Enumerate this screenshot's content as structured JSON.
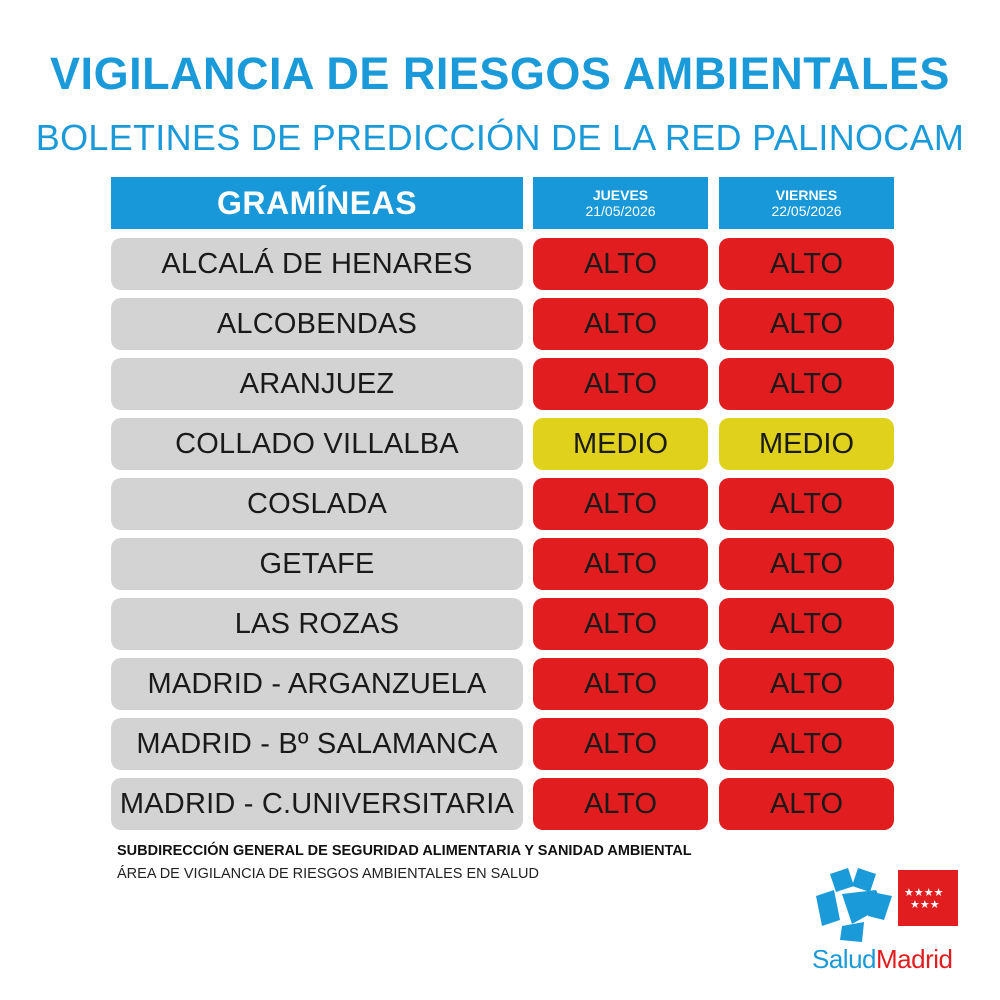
{
  "title": "VIGILANCIA DE RIESGOS AMBIENTALES",
  "subtitle": "BOLETINES DE PREDICCIÓN DE LA RED PALINOCAM",
  "table": {
    "header": "GRAMÍNEAS",
    "days": [
      {
        "name": "JUEVES",
        "date": "21/05/2026"
      },
      {
        "name": "VIERNES",
        "date": "22/05/2026"
      }
    ],
    "rows": [
      {
        "location": "ALCALÁ DE HENARES",
        "day1": "ALTO",
        "day2": "ALTO"
      },
      {
        "location": "ALCOBENDAS",
        "day1": "ALTO",
        "day2": "ALTO"
      },
      {
        "location": "ARANJUEZ",
        "day1": "ALTO",
        "day2": "ALTO"
      },
      {
        "location": "COLLADO VILLALBA",
        "day1": "MEDIO",
        "day2": "MEDIO"
      },
      {
        "location": "COSLADA",
        "day1": "ALTO",
        "day2": "ALTO"
      },
      {
        "location": "GETAFE",
        "day1": "ALTO",
        "day2": "ALTO"
      },
      {
        "location": "LAS ROZAS",
        "day1": "ALTO",
        "day2": "ALTO"
      },
      {
        "location": "MADRID - ARGANZUELA",
        "day1": "ALTO",
        "day2": "ALTO"
      },
      {
        "location": "MADRID - Bº SALAMANCA",
        "day1": "ALTO",
        "day2": "ALTO"
      },
      {
        "location": "MADRID - C.UNIVERSITARIA",
        "day1": "ALTO",
        "day2": "ALTO"
      }
    ]
  },
  "level_colors": {
    "ALTO": "#e21d1f",
    "MEDIO": "#e0d21c"
  },
  "footer": {
    "line1": "SUBDIRECCIÓN GENERAL DE SEGURIDAD ALIMENTARIA Y SANIDAD AMBIENTAL",
    "line2": "ÁREA DE VIGILANCIA DE RIESGOS AMBIENTALES EN SALUD"
  },
  "logo": {
    "word1": "Salud",
    "word2": "Madrid",
    "icon": "salud-madrid-star-logo"
  }
}
